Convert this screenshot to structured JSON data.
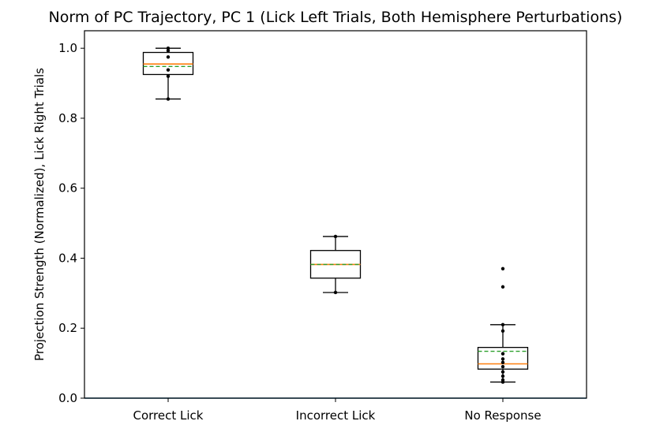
{
  "chart_data": {
    "type": "box",
    "title": "Norm of PC Trajectory, PC 1  (Lick Left Trials, Both Hemisphere Perturbations)",
    "xlabel": "",
    "ylabel": "Projection Strength (Normalized), Lick Right Trials",
    "ylim": [
      0.0,
      1.05
    ],
    "yticks": [
      0.0,
      0.2,
      0.4,
      0.6,
      0.8,
      1.0
    ],
    "ytick_labels": [
      "0.0",
      "0.2",
      "0.4",
      "0.6",
      "0.8",
      "1.0"
    ],
    "grid": false,
    "categories": [
      "Correct Lick",
      "Incorrect Lick",
      "No Response"
    ],
    "boxes": [
      {
        "label": "Correct Lick",
        "whisker_low": 0.855,
        "q1": 0.925,
        "median": 0.955,
        "mean": 0.948,
        "q3": 0.988,
        "whisker_high": 1.0,
        "points": [
          0.855,
          0.92,
          0.938,
          0.975,
          0.993,
          1.0
        ]
      },
      {
        "label": "Incorrect Lick",
        "whisker_low": 0.302,
        "q1": 0.343,
        "median": 0.382,
        "mean": 0.382,
        "q3": 0.422,
        "whisker_high": 0.462,
        "points": [
          0.302,
          0.462
        ]
      },
      {
        "label": "No Response",
        "whisker_low": 0.046,
        "q1": 0.083,
        "median": 0.098,
        "mean": 0.134,
        "q3": 0.145,
        "whisker_high": 0.21,
        "points": [
          0.046,
          0.052,
          0.063,
          0.075,
          0.09,
          0.102,
          0.112,
          0.127,
          0.192,
          0.21,
          0.318,
          0.37
        ]
      }
    ],
    "baseline": 0.0,
    "colors": {
      "median": "#ff7f0e",
      "mean": "#2ca02c",
      "baseline": "#1f77b4",
      "box": "#000000"
    }
  }
}
